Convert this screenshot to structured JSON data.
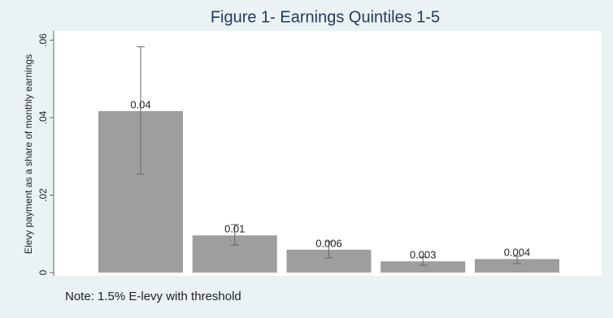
{
  "chart_data": {
    "type": "bar",
    "title": "Figure 1- Earnings Quintiles 1-5",
    "y_label": "Elevy payment as a share of monthly earnings",
    "note": "Note: 1.5% E-levy with threshold",
    "categories": [
      null,
      null,
      null,
      null,
      null
    ],
    "values": [
      0.0417,
      0.0096,
      0.0059,
      0.0029,
      0.0035
    ],
    "value_labels": [
      "0.04",
      "0.01",
      "0.006",
      "0.003",
      "0.004"
    ],
    "ci_low": [
      0.0254,
      0.0071,
      0.0038,
      0.0019,
      0.0023
    ],
    "ci_high": [
      0.0583,
      0.0124,
      0.008,
      0.004,
      0.0042
    ],
    "color": "#9e9e9e",
    "ylim": [
      0,
      0.062
    ],
    "yticks": [
      0,
      {
        "value": 0.02,
        "label": ".02"
      },
      {
        "value": 0.04,
        "label": ".04"
      },
      {
        "value": 0.06,
        "label": ".06"
      }
    ],
    "grid": false
  }
}
